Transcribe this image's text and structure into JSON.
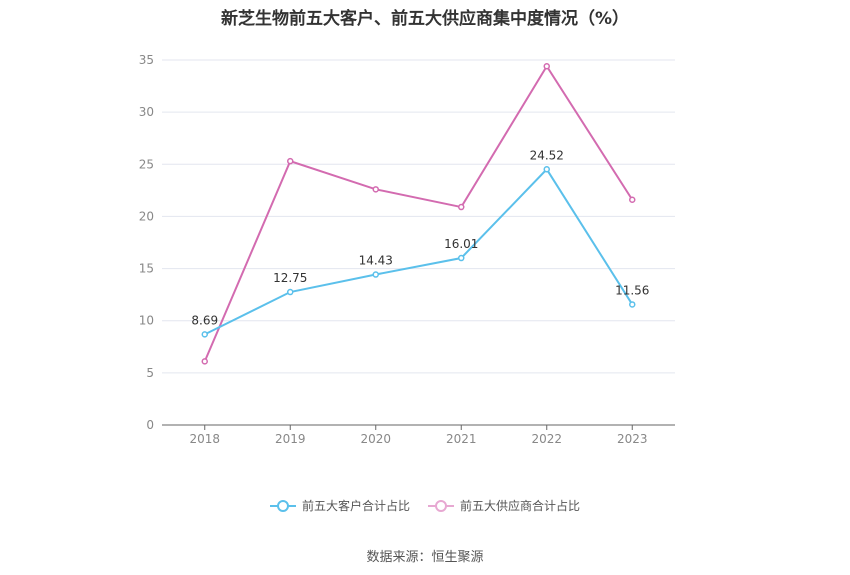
{
  "title": "新芝生物前五大客户、前五大供应商集中度情况（%）",
  "source": "数据来源：恒生聚源",
  "chart_data": {
    "type": "line",
    "categories": [
      "2018",
      "2019",
      "2020",
      "2021",
      "2022",
      "2023"
    ],
    "ylim": [
      0,
      35
    ],
    "yticks": [
      0,
      5,
      10,
      15,
      20,
      25,
      30,
      35
    ],
    "grid": true,
    "legend_position": "bottom",
    "series": [
      {
        "name": "前五大客户合计占比",
        "color": "#5bc0eb",
        "values": [
          8.69,
          12.75,
          14.43,
          16.01,
          24.52,
          11.56
        ],
        "show_labels": true
      },
      {
        "name": "前五大供应商合计占比",
        "color": "#d36bb0",
        "values": [
          6.1,
          25.3,
          22.6,
          20.9,
          34.4,
          21.6
        ],
        "show_labels": false
      }
    ]
  }
}
